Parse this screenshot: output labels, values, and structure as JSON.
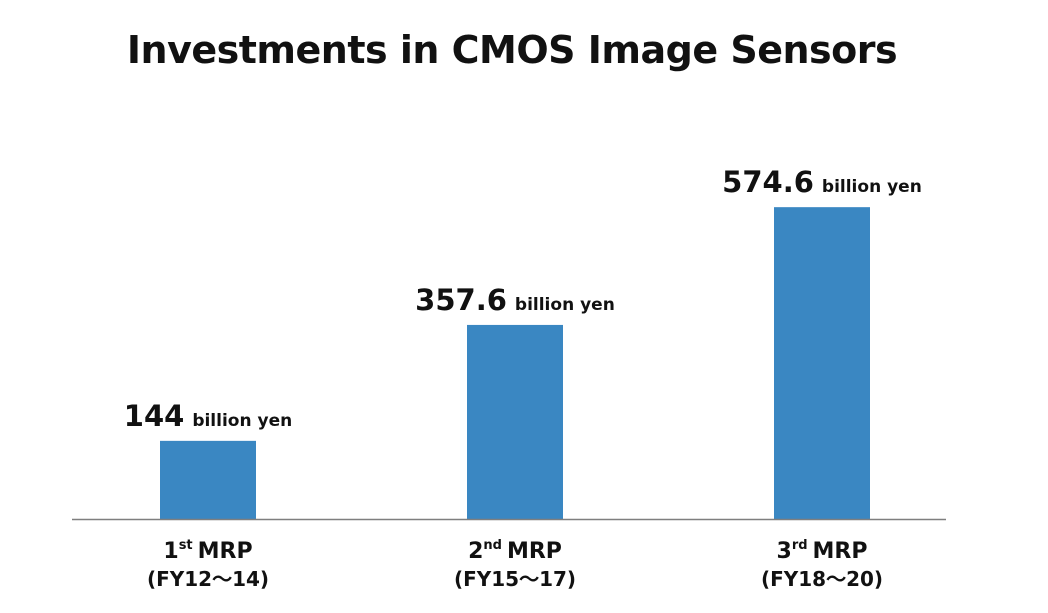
{
  "chart_data": {
    "type": "bar",
    "title": "Investments in CMOS Image Sensors",
    "unit": "billion yen",
    "categories": [
      {
        "number": "1",
        "suffix": "st",
        "name": "MRP",
        "period": "(FY12～14)"
      },
      {
        "number": "2",
        "suffix": "nd",
        "name": "MRP",
        "period": "(FY15～17)"
      },
      {
        "number": "3",
        "suffix": "rd",
        "name": "MRP",
        "period": "(FY18～20)"
      }
    ],
    "values": [
      144,
      357.6,
      574.6
    ],
    "value_labels": [
      "144",
      "357.6",
      "574.6"
    ],
    "bar_color": "#3a87c2",
    "axis_color": "#7f7f7f",
    "grid": false,
    "legend": "none"
  }
}
